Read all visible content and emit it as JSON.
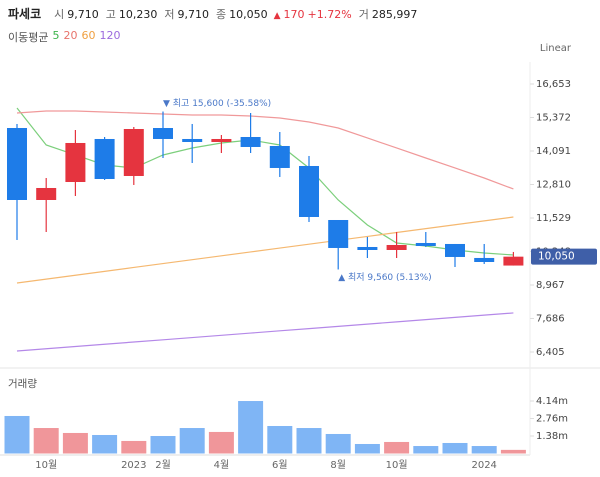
{
  "header": {
    "name": "파세코",
    "open_label": "시",
    "open": "9,710",
    "high_label": "고",
    "high": "10,230",
    "low_label": "저",
    "low": "9,710",
    "close_label": "종",
    "close": "10,050",
    "change_arrow": "▲",
    "change": "170",
    "change_pct": "+1.72%",
    "volume_label": "거",
    "volume": "285,997"
  },
  "chart_data": [
    {
      "type": "candlestick",
      "legend_title": "이동평균",
      "scale_label": "Linear",
      "categories": [
        null,
        "10월",
        null,
        null,
        "2023",
        "2월",
        null,
        "4월",
        null,
        "6월",
        null,
        "8월",
        null,
        "10월",
        null,
        null,
        "2024",
        null
      ],
      "open": [
        14970,
        12217,
        12905,
        14550,
        13135,
        14970,
        14550,
        14435,
        14626,
        14282,
        13517,
        11452,
        10420,
        10305,
        10573,
        10535,
        10000,
        9710
      ],
      "high": [
        15124,
        13058,
        14894,
        14626,
        15009,
        15600,
        15124,
        14703,
        15544,
        14817,
        13900,
        11452,
        10803,
        10993,
        10993,
        10535,
        10535,
        10230
      ],
      "low": [
        10688,
        10993,
        12370,
        12982,
        12791,
        13823,
        13632,
        14014,
        14014,
        13097,
        11376,
        9560,
        9999,
        9999,
        10420,
        9655,
        9770,
        9710
      ],
      "close": [
        12217,
        12676,
        14397,
        13020,
        14932,
        14550,
        14435,
        14550,
        14244,
        13441,
        11567,
        10382,
        10305,
        10496,
        10458,
        10038,
        9846,
        10050
      ],
      "up_color": "#e5343f",
      "down_color": "#1e7ce8",
      "series": [
        {
          "name": "5",
          "color": "#7ccf7c",
          "values": [
            15735,
            14320,
            13938,
            13556,
            13441,
            13938,
            14206,
            14397,
            14512,
            14320,
            13441,
            12217,
            11261,
            10573,
            10458,
            10305,
            10190,
            10115
          ]
        },
        {
          "name": "20",
          "color": "#f0999a",
          "values": [
            15544,
            15620,
            15620,
            15582,
            15544,
            15506,
            15468,
            15468,
            15429,
            15353,
            15200,
            14970,
            14588,
            14206,
            13823,
            13441,
            13058,
            12638
          ]
        },
        {
          "name": "60",
          "color": "#f5b870",
          "values": [
            9043,
            9191,
            9340,
            9488,
            9637,
            9785,
            9934,
            10082,
            10231,
            10379,
            10527,
            10676,
            10824,
            10973,
            11121,
            11270,
            11418,
            11566
          ]
        },
        {
          "name": "120",
          "color": "#b488e8",
          "values": [
            6443,
            6529,
            6614,
            6700,
            6786,
            6871,
            6957,
            7042,
            7128,
            7214,
            7299,
            7385,
            7470,
            7556,
            7642,
            7727,
            7813,
            7898
          ]
        }
      ],
      "legend_colors": [
        "#3cb44b",
        "#e8736b",
        "#f0a040",
        "#9c6ade"
      ],
      "ylim": [
        5907,
        17494
      ],
      "yticks": [
        {
          "value": 16653,
          "label": "16,653"
        },
        {
          "value": 15372,
          "label": "15,372"
        },
        {
          "value": 14091,
          "label": "14,091"
        },
        {
          "value": 12810,
          "label": "12,810"
        },
        {
          "value": 11529,
          "label": "11,529"
        },
        {
          "value": 10248,
          "label": "10,248"
        },
        {
          "value": 8967,
          "label": "8,967"
        },
        {
          "value": 7686,
          "label": "7,686"
        },
        {
          "value": 6405,
          "label": "6,405"
        }
      ],
      "annotations": [
        {
          "text": "▼ 최고 15,600 (-35.58%)",
          "index": 5,
          "at": 15600,
          "color": "#4a78c8"
        },
        {
          "text": "▲ 최저 9,560 (5.13%)",
          "index": 11,
          "at": 9560,
          "color": "#4a78c8"
        }
      ]
    },
    {
      "type": "bar",
      "title": "거래량",
      "values": [
        2960000,
        2010000,
        1620000,
        1460000,
        990000,
        1380000,
        2010000,
        1700000,
        4140000,
        2170000,
        2010000,
        1540000,
        750000,
        910000,
        590000,
        830000,
        590000,
        285997
      ],
      "up_color": "#f0969a",
      "down_color": "#7fb5f5",
      "ylim": [
        0,
        6430000
      ],
      "yticks": [
        {
          "value": 4140000,
          "label": "4.14m"
        },
        {
          "value": 2760000,
          "label": "2.76m"
        },
        {
          "value": 1380000,
          "label": "1.38m"
        }
      ]
    }
  ]
}
